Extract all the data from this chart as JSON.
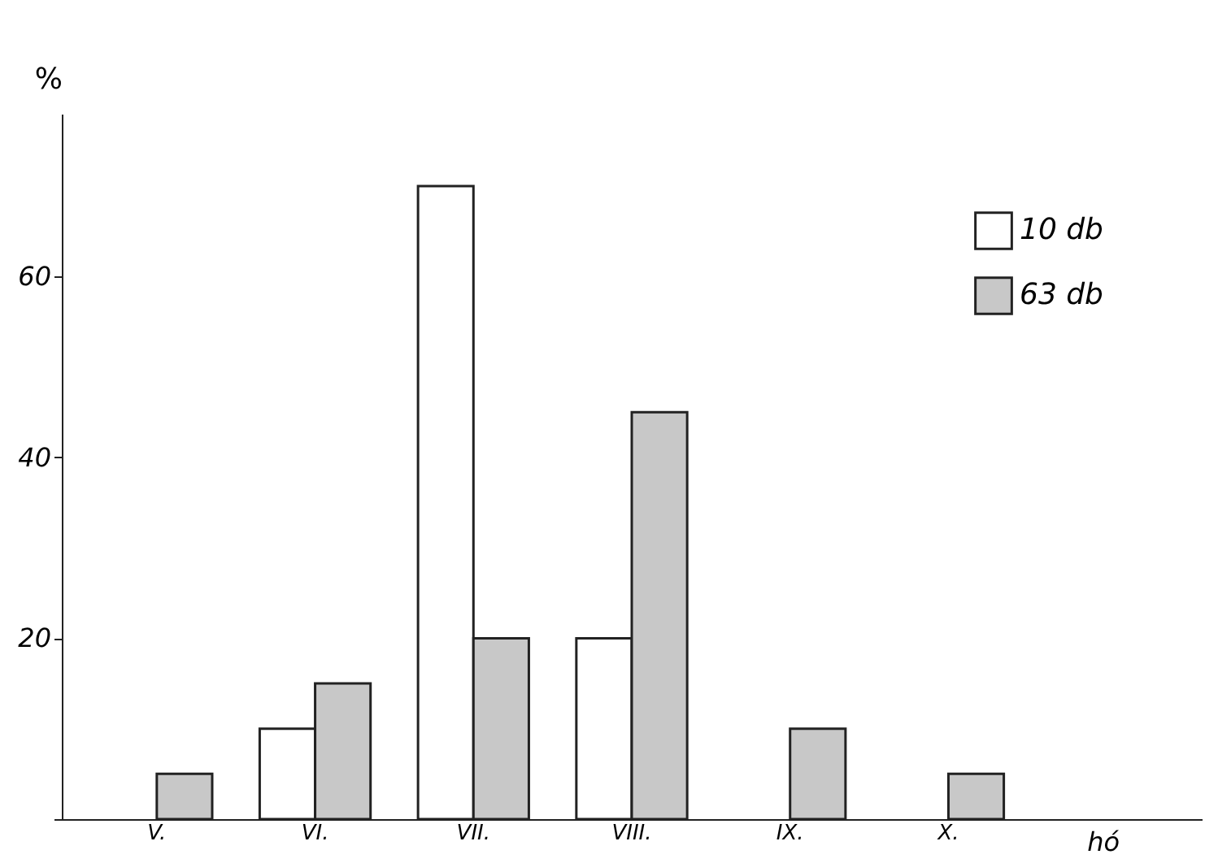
{
  "chart_data": {
    "type": "bar",
    "ylabel": "%",
    "xlabel": "hó",
    "categories": [
      "V.",
      "VI.",
      "VII.",
      "VIII.",
      "IX.",
      "X."
    ],
    "series": [
      {
        "name": "10 db",
        "color": "#ffffff",
        "values": [
          null,
          10,
          70,
          20,
          null,
          null
        ]
      },
      {
        "name": "63 db",
        "color": "#c8c8c8",
        "values": [
          5,
          15,
          20,
          45,
          10,
          5
        ]
      }
    ],
    "ylim": [
      0,
      78
    ],
    "yticks": [
      {
        "value": 0,
        "label": null
      },
      20,
      40,
      60
    ],
    "grid": false,
    "legend": "top right"
  }
}
